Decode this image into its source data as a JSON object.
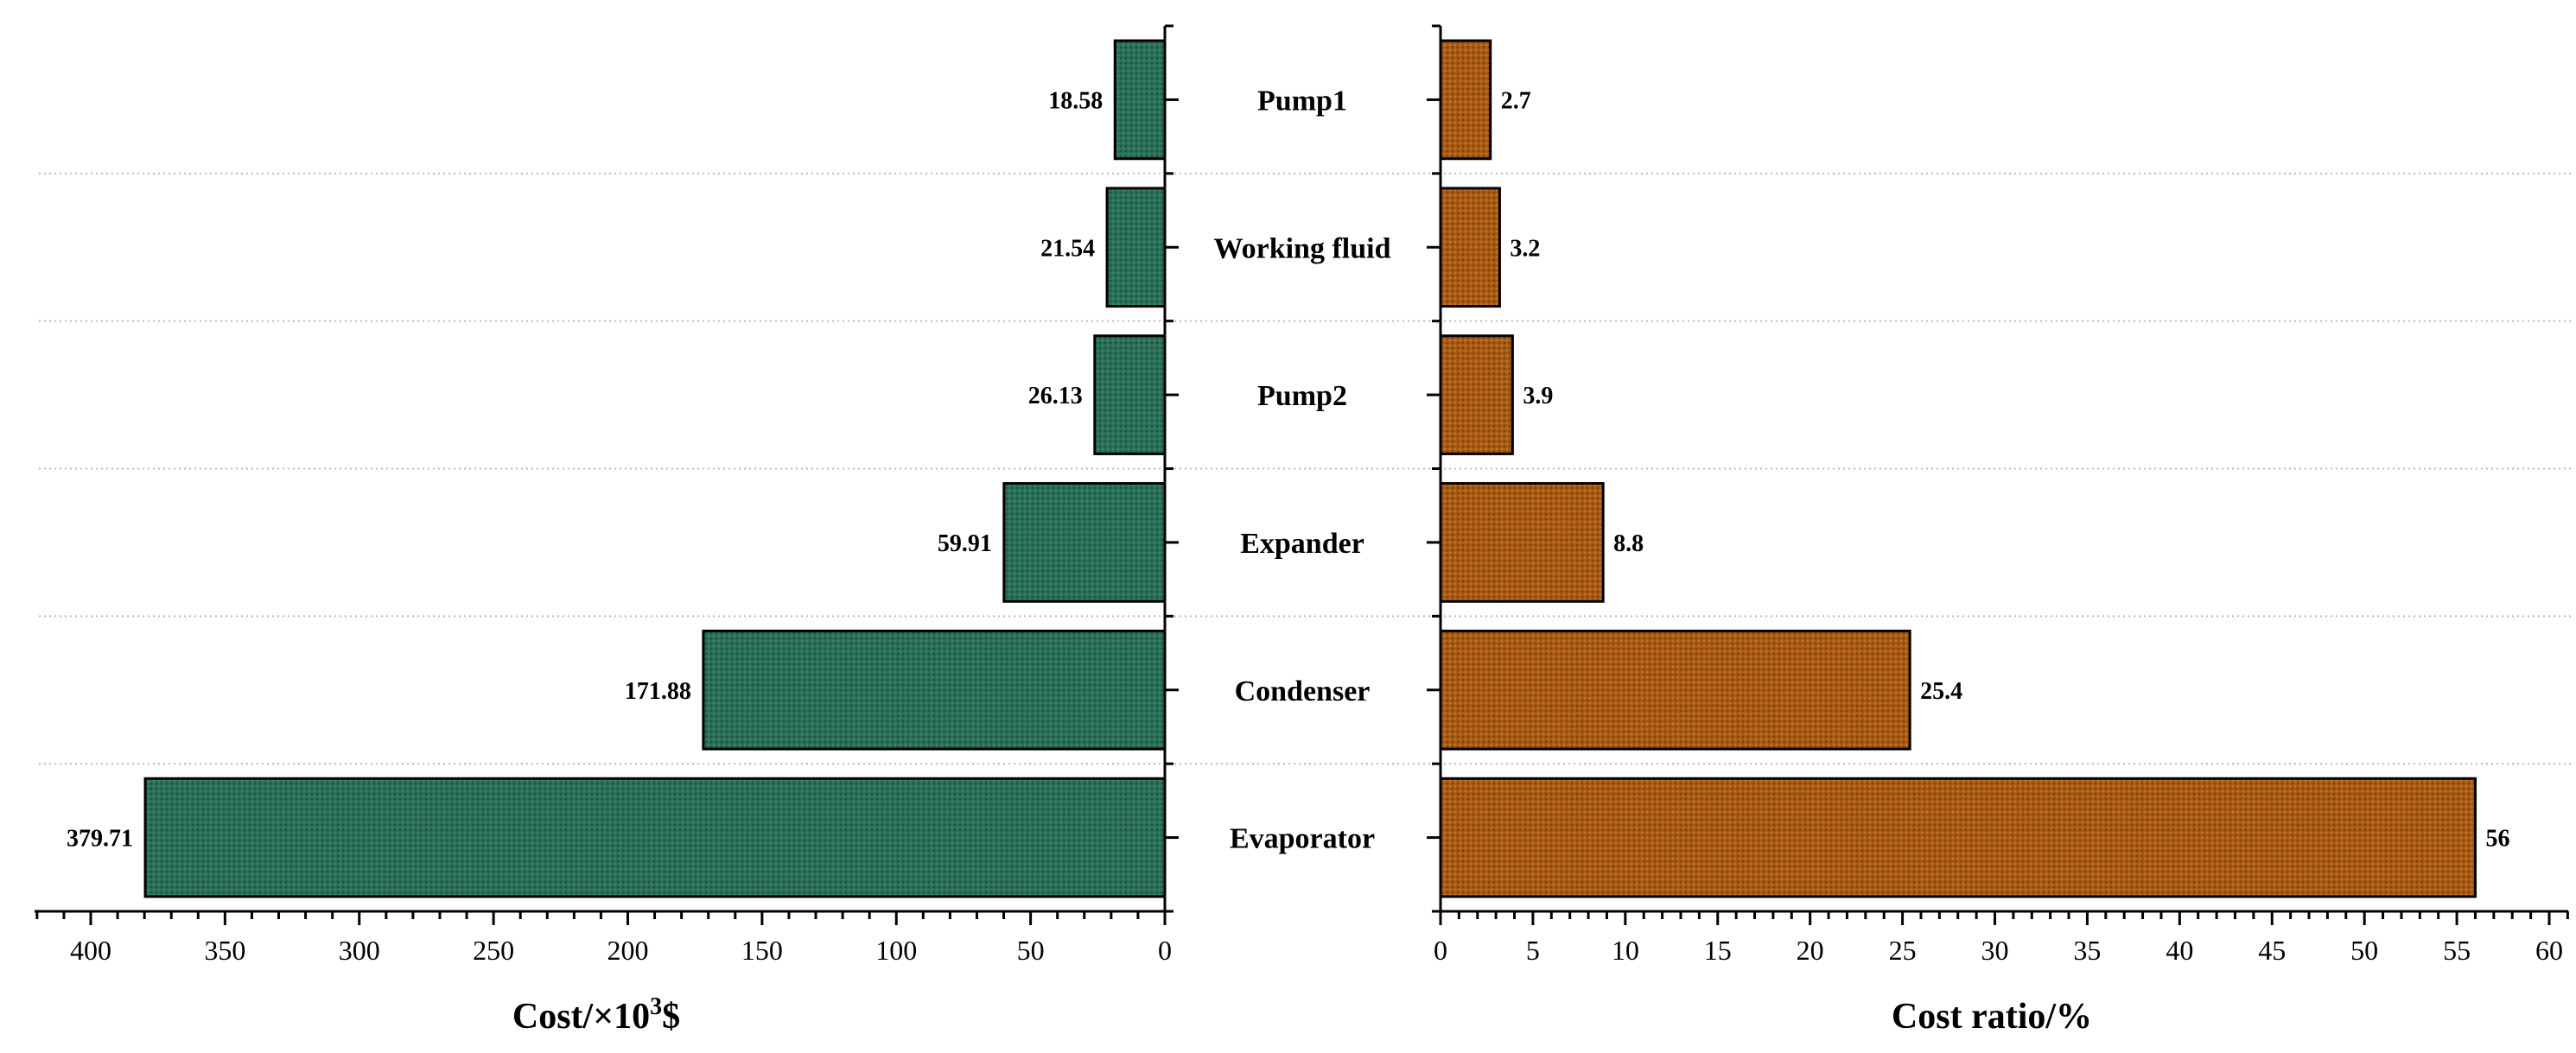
{
  "chart_data": [
    {
      "type": "bar",
      "orientation": "horizontal",
      "direction": "reversed",
      "categories": [
        "Pump1",
        "Working fluid",
        "Pump2",
        "Expander",
        "Condenser",
        "Evaporator"
      ],
      "values": [
        18.58,
        21.54,
        26.13,
        59.91,
        171.88,
        379.71
      ],
      "value_labels": [
        "18.58",
        "21.54",
        "26.13",
        "59.91",
        "171.88",
        "379.71"
      ],
      "xlabel_main": "Cost/×10",
      "xlabel_sup": "3",
      "xlabel_tail": "$",
      "xlim": [
        0,
        420
      ],
      "ticks": [
        "0",
        "50",
        "100",
        "150",
        "200",
        "250",
        "300",
        "350",
        "400"
      ],
      "bar_color": "#2b6e59",
      "grid": "horizontal-dotted"
    },
    {
      "type": "bar",
      "orientation": "horizontal",
      "categories": [
        "Pump1",
        "Working fluid",
        "Pump2",
        "Expander",
        "Condenser",
        "Evaporator"
      ],
      "values": [
        2.7,
        3.2,
        3.9,
        8.8,
        25.4,
        56
      ],
      "value_labels": [
        "2.7",
        "3.2",
        "3.9",
        "8.8",
        "25.4",
        "56"
      ],
      "xlabel": "Cost ratio/%",
      "xlim": [
        0,
        61
      ],
      "ticks": [
        "0",
        "5",
        "10",
        "15",
        "20",
        "25",
        "30",
        "35",
        "40",
        "45",
        "50",
        "55",
        "60"
      ],
      "bar_color": "#a85a12",
      "grid": "horizontal-dotted"
    }
  ]
}
